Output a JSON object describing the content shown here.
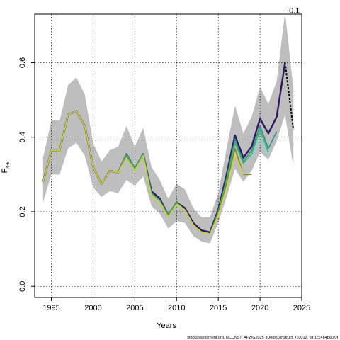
{
  "chart_data": {
    "type": "line",
    "title": "",
    "xlabel": "Years",
    "ylabel": "F",
    "ylabel_subscript": "4-8",
    "xlim": [
      1993,
      2025
    ],
    "ylim": [
      -0.03,
      0.73
    ],
    "x_ticks": [
      1995,
      2000,
      2005,
      2010,
      2015,
      2020,
      2025
    ],
    "y_ticks": [
      0.0,
      0.2,
      0.4,
      0.6
    ],
    "x_tick_labels": [
      "1995",
      "2000",
      "2005",
      "2010",
      "2015",
      "2020",
      "2025"
    ],
    "y_tick_labels": [
      "0.0",
      "0.2",
      "0.4",
      "0.6"
    ],
    "grid": true,
    "annotation": "-0.1",
    "footnote": "stockassessment.org, NCCN57_AFWG2025_IDobsCorStruct, r10012, git:1cc464b60f0f",
    "confidence_band": {
      "x": [
        1994,
        1995,
        1996,
        1997,
        1998,
        1999,
        2000,
        2001,
        2002,
        2003,
        2004,
        2005,
        2006,
        2007,
        2008,
        2009,
        2010,
        2011,
        2012,
        2013,
        2014,
        2015,
        2016,
        2017,
        2018,
        2019,
        2020,
        2021,
        2022,
        2023,
        2024
      ],
      "lower": [
        0.225,
        0.3,
        0.3,
        0.37,
        0.385,
        0.35,
        0.265,
        0.24,
        0.255,
        0.25,
        0.285,
        0.27,
        0.295,
        0.215,
        0.195,
        0.155,
        0.175,
        0.17,
        0.135,
        0.12,
        0.115,
        0.17,
        0.24,
        0.315,
        0.28,
        0.31,
        0.36,
        0.34,
        0.39,
        0.46,
        0.32
      ],
      "upper": [
        0.345,
        0.445,
        0.445,
        0.54,
        0.56,
        0.515,
        0.385,
        0.335,
        0.365,
        0.375,
        0.43,
        0.375,
        0.425,
        0.32,
        0.285,
        0.235,
        0.275,
        0.26,
        0.21,
        0.185,
        0.185,
        0.25,
        0.37,
        0.485,
        0.41,
        0.455,
        0.535,
        0.49,
        0.55,
        0.735,
        0.53
      ]
    },
    "series": [
      {
        "color": "#2a1a5e",
        "x": [
          1994,
          1995,
          1996,
          1997,
          1998,
          1999,
          2000,
          2001,
          2002,
          2003,
          2004,
          2005,
          2006,
          2007,
          2008,
          2009,
          2010,
          2011,
          2012,
          2013,
          2014,
          2015,
          2016,
          2017,
          2018,
          2019,
          2020,
          2021,
          2022,
          2023
        ],
        "values": [
          0.28,
          0.365,
          0.365,
          0.46,
          0.47,
          0.43,
          0.32,
          0.275,
          0.31,
          0.305,
          0.355,
          0.315,
          0.355,
          0.255,
          0.235,
          0.19,
          0.225,
          0.21,
          0.17,
          0.15,
          0.145,
          0.205,
          0.3,
          0.405,
          0.345,
          0.375,
          0.45,
          0.41,
          0.455,
          0.6
        ]
      },
      {
        "color": "#2e8f8a",
        "x": [
          1994,
          1995,
          1996,
          1997,
          1998,
          1999,
          2000,
          2001,
          2002,
          2003,
          2004,
          2005,
          2006,
          2007,
          2008,
          2009,
          2010,
          2011,
          2012,
          2013,
          2014,
          2015,
          2016,
          2017,
          2018,
          2019,
          2020,
          2021,
          2022
        ],
        "values": [
          0.28,
          0.365,
          0.365,
          0.46,
          0.47,
          0.43,
          0.32,
          0.275,
          0.31,
          0.305,
          0.355,
          0.315,
          0.355,
          0.25,
          0.23,
          0.19,
          0.225,
          0.205,
          0.165,
          0.145,
          0.14,
          0.2,
          0.29,
          0.395,
          0.335,
          0.365,
          0.43,
          0.37,
          0.415
        ]
      },
      {
        "color": "#3cb371",
        "x": [
          1994,
          1995,
          1996,
          1997,
          1998,
          1999,
          2000,
          2001,
          2002,
          2003,
          2004,
          2005,
          2006,
          2007,
          2008,
          2009,
          2010,
          2011,
          2012,
          2013,
          2014,
          2015,
          2016,
          2017,
          2018,
          2019,
          2020,
          2021
        ],
        "values": [
          0.28,
          0.365,
          0.365,
          0.46,
          0.47,
          0.43,
          0.32,
          0.275,
          0.31,
          0.305,
          0.355,
          0.315,
          0.355,
          0.25,
          0.23,
          0.19,
          0.225,
          0.205,
          0.165,
          0.145,
          0.14,
          0.2,
          0.285,
          0.385,
          0.33,
          0.355,
          0.42,
          0.36
        ]
      },
      {
        "color": "#7fd8d8",
        "x": [
          2019,
          2020,
          2021
        ],
        "values": [
          0.345,
          0.4,
          0.35
        ]
      },
      {
        "color": "#7a8a2a",
        "x": [
          1994,
          1995,
          1996,
          1997,
          1998,
          1999,
          2000,
          2001,
          2002,
          2003,
          2004,
          2005,
          2006,
          2007,
          2008,
          2009,
          2010,
          2011,
          2012,
          2013,
          2014,
          2015,
          2016,
          2017,
          2018,
          2019
        ],
        "values": [
          0.28,
          0.365,
          0.365,
          0.46,
          0.47,
          0.43,
          0.32,
          0.275,
          0.31,
          0.305,
          0.345,
          0.31,
          0.35,
          0.24,
          0.225,
          0.185,
          0.22,
          0.205,
          0.165,
          0.145,
          0.14,
          0.195,
          0.275,
          0.37,
          0.3,
          0.3
        ]
      },
      {
        "color": "#d4d43a",
        "x": [
          1994,
          1995,
          1996,
          1997,
          1998,
          1999,
          2000,
          2001,
          2002,
          2003,
          2004,
          2005,
          2006,
          2007,
          2008,
          2009,
          2010,
          2011,
          2012,
          2013,
          2014,
          2015,
          2016,
          2017,
          2018
        ],
        "values": [
          0.28,
          0.365,
          0.365,
          0.46,
          0.47,
          0.43,
          0.32,
          0.275,
          0.31,
          0.305,
          0.345,
          0.31,
          0.35,
          0.24,
          0.225,
          0.185,
          0.22,
          0.205,
          0.165,
          0.145,
          0.14,
          0.19,
          0.265,
          0.355,
          0.3
        ]
      }
    ],
    "projection": {
      "color": "#000000",
      "x": [
        2023,
        2024
      ],
      "values": [
        0.6,
        0.42
      ]
    }
  }
}
